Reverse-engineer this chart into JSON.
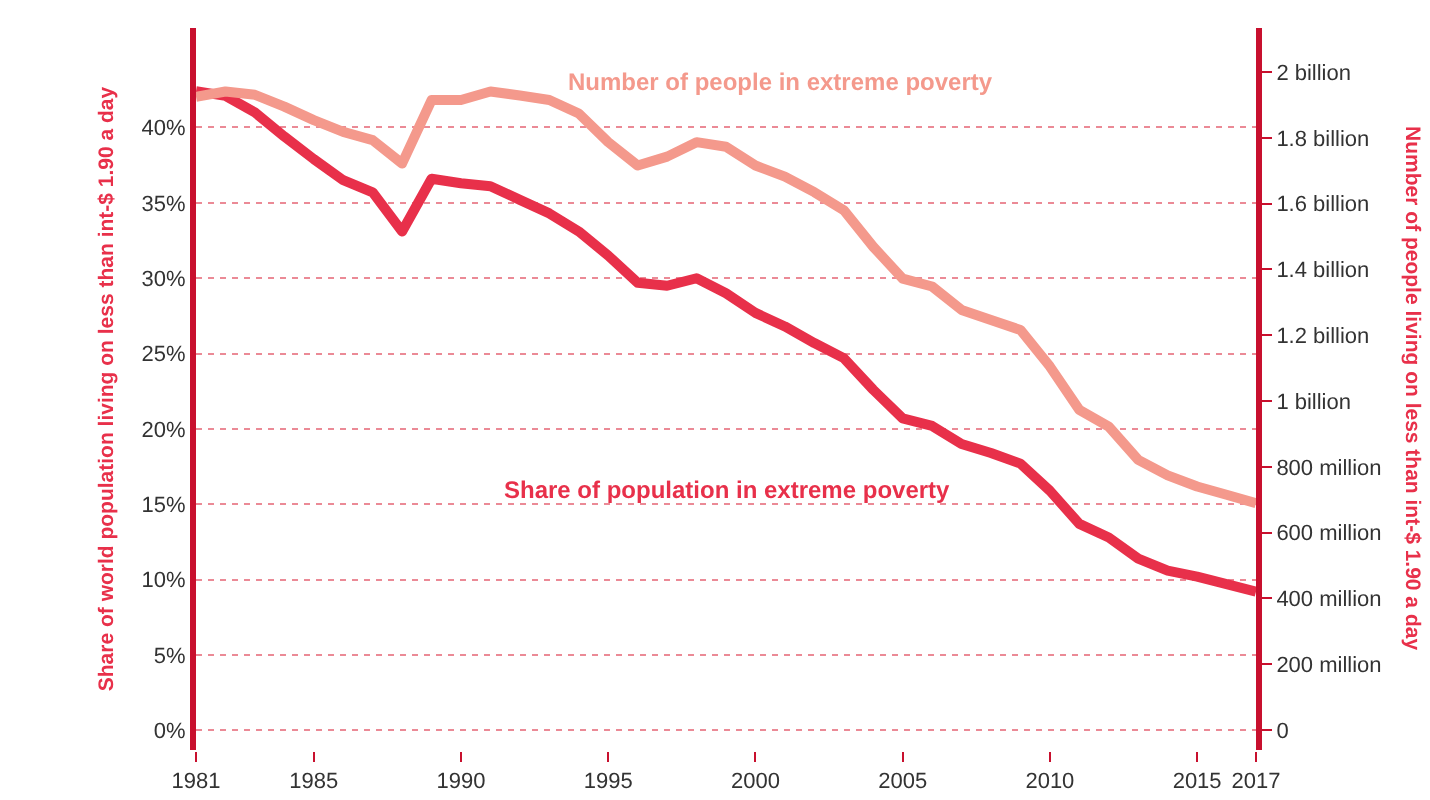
{
  "chart_data": {
    "type": "line",
    "x": [
      1981,
      1982,
      1983,
      1984,
      1985,
      1986,
      1987,
      1988,
      1989,
      1990,
      1991,
      1992,
      1993,
      1994,
      1995,
      1996,
      1997,
      1998,
      1999,
      2000,
      2001,
      2002,
      2003,
      2004,
      2005,
      2006,
      2007,
      2008,
      2009,
      2010,
      2011,
      2012,
      2013,
      2014,
      2015,
      2016,
      2017
    ],
    "series": [
      {
        "name": "Number of people in extreme poverty",
        "color": "#f4998c",
        "axis": "y2",
        "values": [
          1925000000,
          1941000000,
          1931000000,
          1895000000,
          1854000000,
          1818000000,
          1793000000,
          1722000000,
          1915000000,
          1915000000,
          1941000000,
          1929000000,
          1915000000,
          1874000000,
          1787000000,
          1716000000,
          1743000000,
          1787000000,
          1773000000,
          1716000000,
          1682000000,
          1635000000,
          1580000000,
          1469000000,
          1372000000,
          1348000000,
          1277000000,
          1246000000,
          1216000000,
          1105000000,
          973000000,
          922000000,
          821000000,
          774000000,
          740000000,
          715000000,
          689000000
        ]
      },
      {
        "name": "Share of population in extreme poverty",
        "color": "#e8304a",
        "values": [
          42.4,
          42.1,
          41.0,
          39.4,
          37.9,
          36.5,
          35.7,
          33.1,
          36.6,
          36.3,
          36.1,
          35.2,
          34.3,
          33.1,
          31.5,
          29.7,
          29.5,
          30.0,
          29.0,
          27.7,
          26.8,
          25.7,
          24.7,
          22.6,
          20.7,
          20.2,
          19.0,
          18.4,
          17.7,
          15.9,
          13.7,
          12.8,
          11.4,
          10.6,
          10.2,
          9.7,
          9.2
        ]
      }
    ],
    "ylabel": "Share of world population living on less than int-$ 1.90 a day",
    "y2label": "Number of people living on less than int-$ 1.90 a day",
    "xlim": [
      1981,
      2017
    ],
    "xticks": [
      1981,
      1985,
      1990,
      1995,
      2000,
      2005,
      2010,
      2015,
      2017
    ],
    "ylim": [
      -1.3,
      46.6
    ],
    "yticks": [
      {
        "value": 0,
        "label": "0%"
      },
      {
        "value": 5,
        "label": "5%"
      },
      {
        "value": 10,
        "label": "10%"
      },
      {
        "value": 15,
        "label": "15%"
      },
      {
        "value": 20,
        "label": "20%"
      },
      {
        "value": 25,
        "label": "25%"
      },
      {
        "value": 30,
        "label": "30%"
      },
      {
        "value": 35,
        "label": "35%"
      },
      {
        "value": 40,
        "label": "40%"
      }
    ],
    "y2lim": [
      -61000000,
      2134000000
    ],
    "y2ticks": [
      0,
      {
        "value": 200000000,
        "label": "200 million"
      },
      {
        "value": 400000000,
        "label": "400 million"
      },
      {
        "value": 600000000,
        "label": "600 million"
      },
      {
        "value": 800000000,
        "label": "800 million"
      },
      {
        "value": 1000000000,
        "label": "1 billion"
      },
      {
        "value": 1200000000,
        "label": "1.2 billion"
      },
      {
        "value": 1400000000,
        "label": "1.4 billion"
      },
      {
        "value": 1600000000,
        "label": "1.6 billion"
      },
      {
        "value": 1800000000,
        "label": "1.8 billion"
      },
      {
        "value": 2000000000,
        "label": "2 billion"
      }
    ],
    "grid": "y",
    "legend": false,
    "marker": "none",
    "line_style": "solid"
  }
}
